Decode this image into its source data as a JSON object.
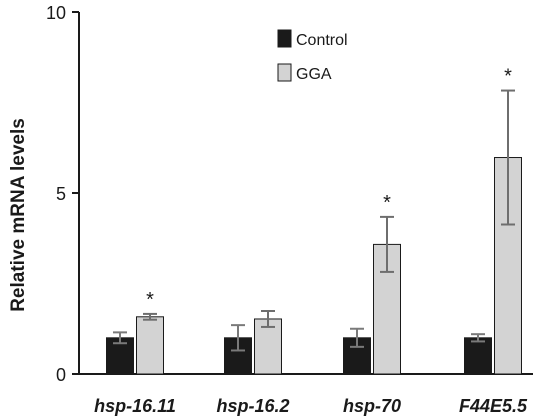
{
  "chart_data": {
    "type": "bar",
    "title": "",
    "xlabel": "",
    "ylabel": "Relative mRNA levels",
    "ylim": [
      0,
      10
    ],
    "yticks": [
      "0",
      "5",
      "10"
    ],
    "categories": [
      "hsp-16.11",
      "hsp-16.2",
      "hsp-70",
      "F44E5.5"
    ],
    "series": [
      {
        "name": "Control",
        "color": "#1a1a1a",
        "values": [
          1.0,
          1.0,
          1.0,
          1.0
        ],
        "errors": [
          0.15,
          0.35,
          0.25,
          0.1
        ]
      },
      {
        "name": "GGA",
        "color": "#d3d3d3",
        "values": [
          1.58,
          1.52,
          3.58,
          5.98
        ],
        "errors": [
          0.08,
          0.22,
          0.76,
          1.85
        ]
      }
    ],
    "significance": [
      "*",
      "",
      "*",
      "*"
    ],
    "legend": "top-center",
    "grid": false
  }
}
